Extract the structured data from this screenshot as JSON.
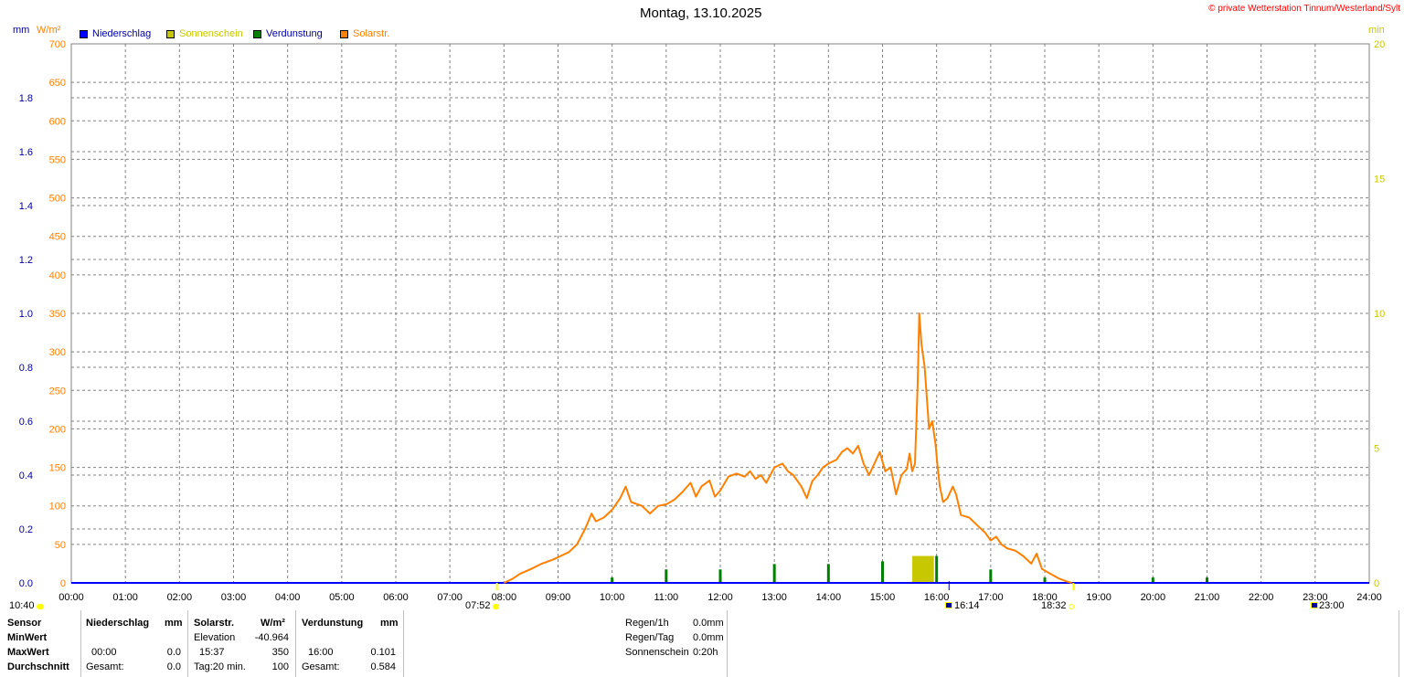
{
  "title": "Montag, 13.10.2025",
  "copyright": "© private Wetterstation Tinnum/Westerland/Sylt",
  "units": {
    "left1": "mm",
    "left2": "W/m²",
    "right": "min"
  },
  "legend": [
    {
      "label": "Niederschlag",
      "swatch": "#0000ff",
      "text_color": "#0000a0"
    },
    {
      "label": "Sonnenschein",
      "swatch": "#c8c800",
      "text_color": "#c8c800"
    },
    {
      "label": "Verdunstung",
      "swatch": "#008000",
      "text_color": "#0000a0"
    },
    {
      "label": "Solarstr.",
      "swatch": "#ff8000",
      "text_color": "#ff8000"
    }
  ],
  "colors": {
    "solar": "#ff8000",
    "sunshine": "#c8c800",
    "evaporation": "#008000",
    "rain": "#0000ff",
    "axis_mm": "#0000a0",
    "axis_wm2": "#ff8000",
    "axis_min": "#c8c800",
    "grid": "#808080"
  },
  "markers": {
    "left_time": "10:40",
    "sunrise": "07:52",
    "marker_1614": "16:14",
    "sunset": "18:32",
    "marker_2300": "23:00"
  },
  "chart_data": {
    "type": "line",
    "title": "Montag, 13.10.2025",
    "x_range_hours": [
      0,
      24
    ],
    "x_ticks": [
      "00:00",
      "01:00",
      "02:00",
      "03:00",
      "04:00",
      "05:00",
      "06:00",
      "07:00",
      "08:00",
      "09:00",
      "10:00",
      "11:00",
      "12:00",
      "13:00",
      "14:00",
      "15:00",
      "16:00",
      "17:00",
      "18:00",
      "19:00",
      "20:00",
      "21:00",
      "22:00",
      "23:00",
      "24:00"
    ],
    "y_axes": {
      "mm": {
        "label": "mm",
        "range": [
          0,
          2.0
        ],
        "ticks": [
          "0.0",
          "0.2",
          "0.4",
          "0.6",
          "0.8",
          "1.0",
          "1.2",
          "1.4",
          "1.6",
          "1.8"
        ]
      },
      "wm2": {
        "label": "W/m²",
        "range": [
          0,
          700
        ],
        "ticks": [
          "0",
          "50",
          "100",
          "150",
          "200",
          "250",
          "300",
          "350",
          "400",
          "450",
          "500",
          "550",
          "600",
          "650",
          "700"
        ]
      },
      "min": {
        "label": "min",
        "range": [
          0,
          20
        ],
        "ticks": [
          "0",
          "5",
          "10",
          "15",
          "20"
        ]
      }
    },
    "grid": true,
    "legend_position": "top-left",
    "series": [
      {
        "name": "Solarstr.",
        "axis": "wm2",
        "points": [
          [
            8.0,
            0
          ],
          [
            8.15,
            5
          ],
          [
            8.3,
            12
          ],
          [
            8.5,
            18
          ],
          [
            8.7,
            25
          ],
          [
            8.9,
            30
          ],
          [
            9.05,
            35
          ],
          [
            9.2,
            40
          ],
          [
            9.35,
            50
          ],
          [
            9.5,
            70
          ],
          [
            9.62,
            90
          ],
          [
            9.7,
            80
          ],
          [
            9.85,
            85
          ],
          [
            10.0,
            95
          ],
          [
            10.15,
            110
          ],
          [
            10.25,
            125
          ],
          [
            10.35,
            105
          ],
          [
            10.55,
            100
          ],
          [
            10.7,
            90
          ],
          [
            10.85,
            100
          ],
          [
            11.0,
            102
          ],
          [
            11.15,
            108
          ],
          [
            11.3,
            118
          ],
          [
            11.45,
            130
          ],
          [
            11.55,
            112
          ],
          [
            11.65,
            125
          ],
          [
            11.8,
            133
          ],
          [
            11.9,
            112
          ],
          [
            12.0,
            120
          ],
          [
            12.15,
            138
          ],
          [
            12.3,
            142
          ],
          [
            12.45,
            138
          ],
          [
            12.55,
            145
          ],
          [
            12.65,
            135
          ],
          [
            12.75,
            140
          ],
          [
            12.85,
            130
          ],
          [
            13.0,
            150
          ],
          [
            13.15,
            155
          ],
          [
            13.25,
            145
          ],
          [
            13.35,
            140
          ],
          [
            13.5,
            125
          ],
          [
            13.6,
            110
          ],
          [
            13.7,
            132
          ],
          [
            13.8,
            140
          ],
          [
            13.9,
            150
          ],
          [
            14.0,
            155
          ],
          [
            14.15,
            160
          ],
          [
            14.25,
            170
          ],
          [
            14.35,
            175
          ],
          [
            14.45,
            168
          ],
          [
            14.55,
            178
          ],
          [
            14.65,
            155
          ],
          [
            14.75,
            140
          ],
          [
            14.85,
            155
          ],
          [
            14.95,
            170
          ],
          [
            15.05,
            145
          ],
          [
            15.15,
            150
          ],
          [
            15.25,
            115
          ],
          [
            15.35,
            140
          ],
          [
            15.45,
            148
          ],
          [
            15.5,
            168
          ],
          [
            15.55,
            145
          ],
          [
            15.6,
            155
          ],
          [
            15.65,
            260
          ],
          [
            15.68,
            350
          ],
          [
            15.72,
            310
          ],
          [
            15.78,
            280
          ],
          [
            15.82,
            240
          ],
          [
            15.86,
            200
          ],
          [
            15.92,
            210
          ],
          [
            15.98,
            180
          ],
          [
            16.02,
            150
          ],
          [
            16.06,
            125
          ],
          [
            16.12,
            105
          ],
          [
            16.2,
            110
          ],
          [
            16.3,
            125
          ],
          [
            16.36,
            115
          ],
          [
            16.45,
            88
          ],
          [
            16.6,
            85
          ],
          [
            16.75,
            75
          ],
          [
            16.9,
            65
          ],
          [
            17.0,
            55
          ],
          [
            17.1,
            60
          ],
          [
            17.2,
            50
          ],
          [
            17.3,
            45
          ],
          [
            17.45,
            42
          ],
          [
            17.6,
            35
          ],
          [
            17.75,
            25
          ],
          [
            17.85,
            38
          ],
          [
            17.95,
            18
          ],
          [
            18.1,
            12
          ],
          [
            18.25,
            6
          ],
          [
            18.4,
            2
          ],
          [
            18.5,
            0
          ]
        ]
      },
      {
        "name": "Sonnenschein",
        "axis": "min",
        "bars": [
          {
            "start": 15.55,
            "end": 15.95,
            "value": 1.0
          }
        ]
      },
      {
        "name": "Verdunstung",
        "axis": "mm",
        "spikes": [
          [
            10.0,
            0.02
          ],
          [
            11.0,
            0.05
          ],
          [
            12.0,
            0.05
          ],
          [
            13.0,
            0.07
          ],
          [
            14.0,
            0.07
          ],
          [
            15.0,
            0.08
          ],
          [
            16.0,
            0.1
          ],
          [
            17.0,
            0.05
          ],
          [
            18.0,
            0.02
          ],
          [
            20.0,
            0.02
          ],
          [
            21.0,
            0.02
          ]
        ]
      },
      {
        "name": "Niederschlag",
        "axis": "mm",
        "values": []
      }
    ]
  },
  "stats": {
    "headers": {
      "sensor": "Sensor",
      "niederschlag": "Niederschlag",
      "mm": "mm",
      "solar": "Solarstr.",
      "wm2": "W/m²",
      "verdunstung": "Verdunstung",
      "mm2": "mm"
    },
    "rows": {
      "minwert": "MinWert",
      "maxwert": "MaxWert",
      "durchschnitt": "Durchschnitt"
    },
    "niederschlag_max_time": "00:00",
    "niederschlag_max": "0.0",
    "niederschlag_total_label": "Gesamt:",
    "niederschlag_total": "0.0",
    "solar_elevation_label": "Elevation",
    "solar_elevation": "-40.964",
    "solar_max_time": "15:37",
    "solar_max": "350",
    "solar_day_label": "Tag:20 min.",
    "solar_avg": "100",
    "verd_max_time": "16:00",
    "verd_max": "0.101",
    "verd_total_label": "Gesamt:",
    "verd_total": "0.584"
  },
  "summary": [
    {
      "label": "Regen/1h",
      "value": "0.0mm"
    },
    {
      "label": "Regen/Tag",
      "value": "0.0mm"
    },
    {
      "label": "Sonnenschein",
      "value": "0:20h"
    }
  ]
}
